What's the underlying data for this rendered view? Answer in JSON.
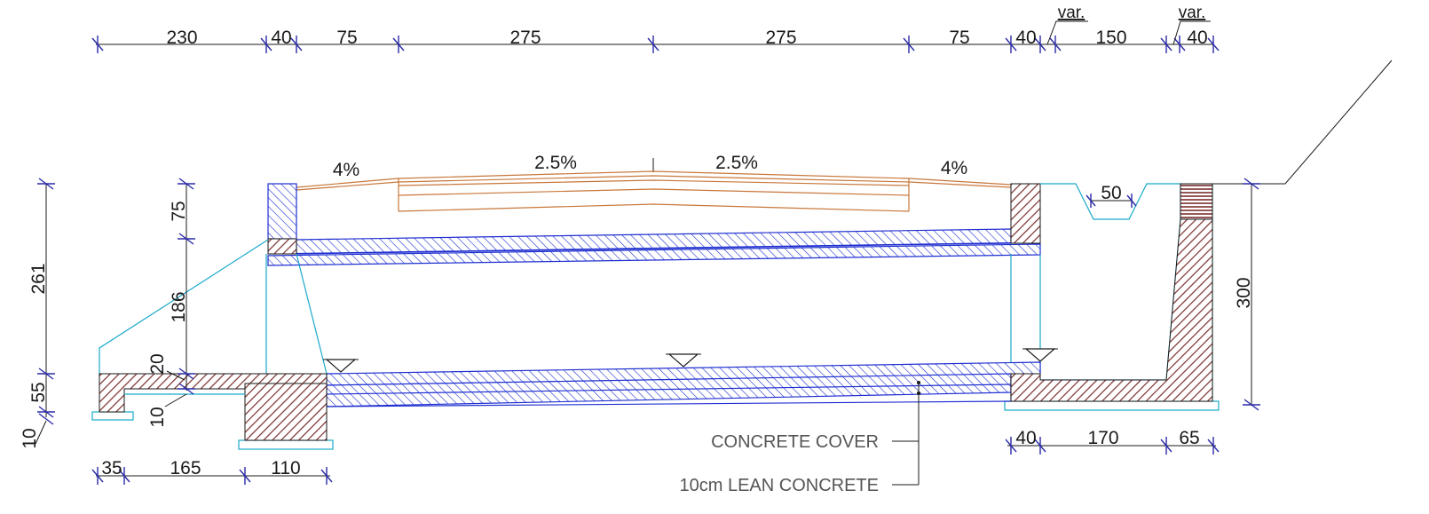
{
  "top_dims": {
    "d1": "230",
    "d2": "40",
    "d3": "75",
    "d4": "275",
    "d5": "275",
    "d6": "75",
    "d7": "40",
    "d8": "150",
    "d9": "40",
    "var1": "var.",
    "var2": "var."
  },
  "slopes": {
    "s1": "4%",
    "s2": "2.5%",
    "s3": "2.5%",
    "s4": "4%"
  },
  "left_dims": {
    "v261": "261",
    "v75": "75",
    "v186": "186",
    "v20": "20",
    "v55": "55",
    "v10a": "10",
    "v10b": "10"
  },
  "right_dims": {
    "v300": "300",
    "w50": "50"
  },
  "bottom_left_dims": {
    "b35": "35",
    "b165": "165",
    "b110": "110"
  },
  "bottom_right_dims": {
    "b40": "40",
    "b170": "170",
    "b65": "65"
  },
  "labels": {
    "cover": "CONCRETE COVER",
    "lean": "10cm LEAN CONCRETE"
  },
  "colors": {
    "hatch_brown": "#7a2e2e",
    "hatch_blue": "#1f2fd0",
    "cyan": "#19a9c8",
    "orange": "#c8773a",
    "ticks": "#2a2aa8"
  }
}
